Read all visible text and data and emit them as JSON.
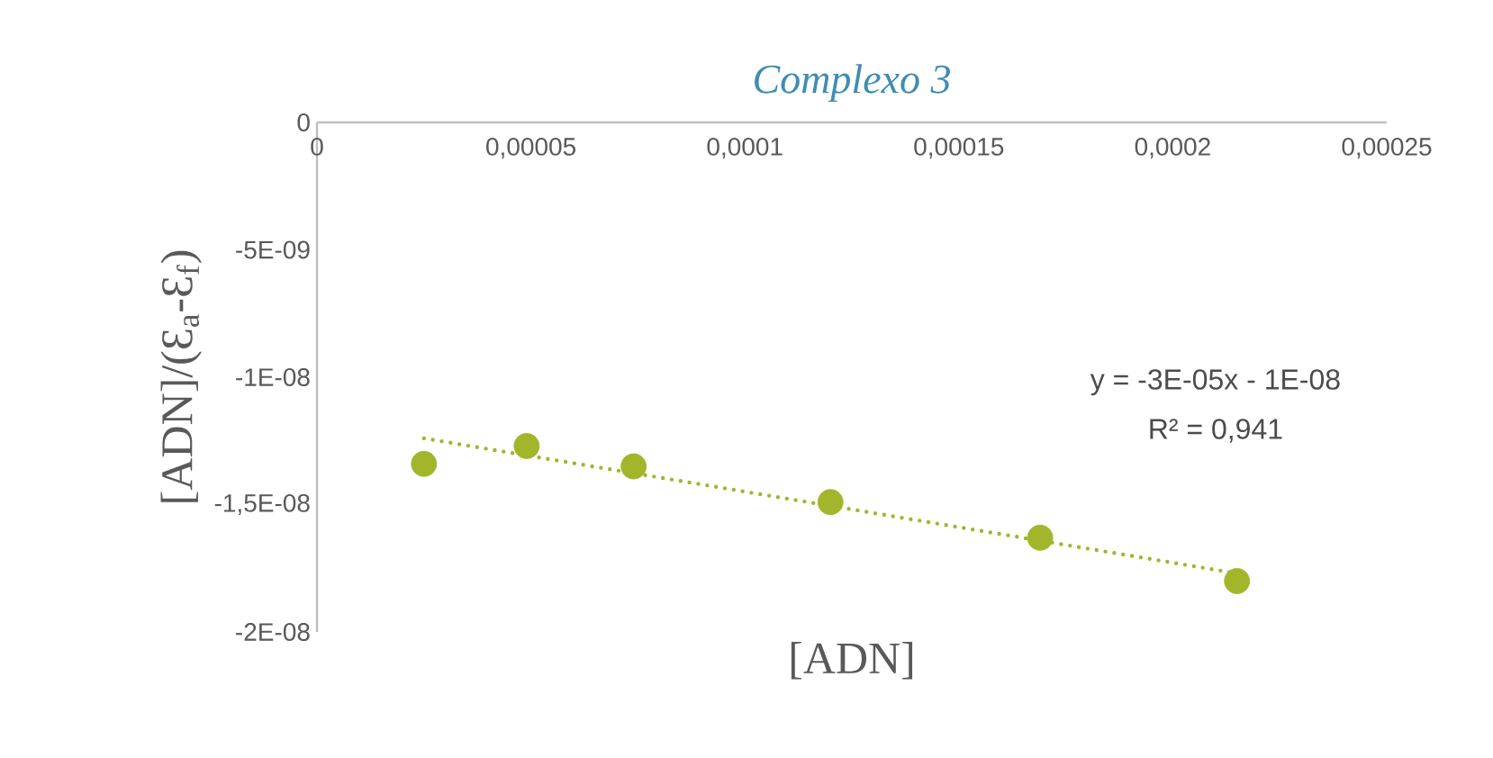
{
  "chart_data": {
    "type": "scatter",
    "title": "Complexo 3",
    "xlabel": "[ADN]",
    "ylabel": "[ADN]/(Ɛ$_{a}$-Ɛ$_{f}$)",
    "xlim": [
      0,
      0.00025
    ],
    "ylim": [
      -2e-08,
      0
    ],
    "xticks": [
      {
        "value": 0,
        "label": "0"
      },
      {
        "value": 5e-05,
        "label": "0,00005"
      },
      {
        "value": 0.0001,
        "label": "0,0001"
      },
      {
        "value": 0.00015,
        "label": "0,00015"
      },
      {
        "value": 0.0002,
        "label": "0,0002"
      },
      {
        "value": 0.00025,
        "label": "0,00025"
      }
    ],
    "yticks": [
      {
        "value": 0,
        "label": "0"
      },
      {
        "value": -5e-09,
        "label": "-5E-09"
      },
      {
        "value": -1e-08,
        "label": "-1E-08"
      },
      {
        "value": -1.5e-08,
        "label": "-1,5E-08"
      },
      {
        "value": -2e-08,
        "label": "-2E-08"
      }
    ],
    "series": [
      {
        "color": "#a2b52b",
        "marker": "circle",
        "x": [
          2.5e-05,
          4.9e-05,
          7.4e-05,
          0.00012,
          0.000169,
          0.000215
        ],
        "values": [
          -1.34e-08,
          -1.27e-08,
          -1.35e-08,
          -1.49e-08,
          -1.63e-08,
          -1.8e-08
        ]
      },
      {
        "type": "line",
        "color": "#a2b52b",
        "line_style": "dotted",
        "marker": "none",
        "x": [
          2.5e-05,
          0.000215
        ],
        "values": [
          -1.24e-08,
          -1.77e-08
        ]
      }
    ],
    "annotations": [
      "y = -3E-05x - 1E-08",
      "R² = 0,941"
    ],
    "grid": false,
    "legend": false
  }
}
